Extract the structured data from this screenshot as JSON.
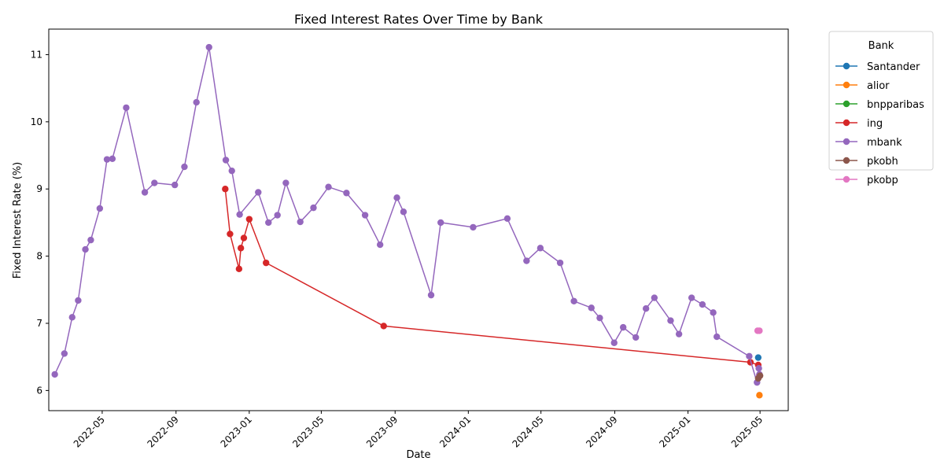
{
  "chart_data": {
    "type": "line",
    "title": "Fixed Interest Rates Over Time by Bank",
    "xlabel": "Date",
    "ylabel": "Fixed Interest Rate (%)",
    "xlim": [
      "2022-02-01",
      "2025-06-17"
    ],
    "ylim": [
      5.7,
      11.38
    ],
    "x_ticks": [
      "2022-05-01",
      "2022-09-01",
      "2023-01-01",
      "2023-05-01",
      "2023-09-01",
      "2024-01-01",
      "2024-05-01",
      "2024-09-01",
      "2025-01-01",
      "2025-05-01"
    ],
    "x_tick_labels": [
      "2022-05",
      "2022-09",
      "2023-01",
      "2023-05",
      "2023-09",
      "2024-01",
      "2024-05",
      "2024-09",
      "2025-01",
      "2025-05"
    ],
    "y_ticks": [
      6,
      7,
      8,
      9,
      10,
      11
    ],
    "y_tick_labels": [
      "6",
      "7",
      "8",
      "9",
      "10",
      "11"
    ],
    "grid": false,
    "legend": {
      "title": "Bank",
      "placement": "outside right"
    },
    "series": [
      {
        "name": "Santander",
        "color": "#1f77b4",
        "points": [
          [
            "2025-04-28",
            6.49
          ]
        ]
      },
      {
        "name": "alior",
        "color": "#ff7f0e",
        "points": [
          [
            "2025-04-30",
            5.93
          ]
        ]
      },
      {
        "name": "bnpparibas",
        "color": "#2ca02c",
        "points": []
      },
      {
        "name": "ing",
        "color": "#d62728",
        "points": [
          [
            "2022-11-22",
            9.0
          ],
          [
            "2022-11-30",
            8.33
          ],
          [
            "2022-12-15",
            7.81
          ],
          [
            "2022-12-18",
            8.12
          ],
          [
            "2022-12-23",
            8.27
          ],
          [
            "2023-01-01",
            8.55
          ],
          [
            "2023-01-29",
            7.9
          ],
          [
            "2023-08-13",
            6.96
          ],
          [
            "2025-04-15",
            6.42
          ],
          [
            "2025-04-28",
            6.38
          ],
          [
            "2025-04-30",
            6.23
          ]
        ]
      },
      {
        "name": "mbank",
        "color": "#9467bd",
        "points": [
          [
            "2022-02-11",
            6.24
          ],
          [
            "2022-02-27",
            6.55
          ],
          [
            "2022-03-12",
            7.09
          ],
          [
            "2022-03-22",
            7.34
          ],
          [
            "2022-04-03",
            8.1
          ],
          [
            "2022-04-12",
            8.24
          ],
          [
            "2022-04-27",
            8.71
          ],
          [
            "2022-05-09",
            9.44
          ],
          [
            "2022-05-18",
            9.45
          ],
          [
            "2022-06-10",
            10.21
          ],
          [
            "2022-07-11",
            8.95
          ],
          [
            "2022-07-27",
            9.09
          ],
          [
            "2022-08-30",
            9.06
          ],
          [
            "2022-09-15",
            9.33
          ],
          [
            "2022-10-05",
            10.29
          ],
          [
            "2022-10-26",
            11.11
          ],
          [
            "2022-11-23",
            9.43
          ],
          [
            "2022-12-03",
            9.27
          ],
          [
            "2022-12-16",
            8.62
          ],
          [
            "2023-01-16",
            8.95
          ],
          [
            "2023-02-02",
            8.5
          ],
          [
            "2023-02-17",
            8.61
          ],
          [
            "2023-03-03",
            9.09
          ],
          [
            "2023-03-27",
            8.51
          ],
          [
            "2023-04-18",
            8.72
          ],
          [
            "2023-05-13",
            9.03
          ],
          [
            "2023-06-12",
            8.94
          ],
          [
            "2023-07-13",
            8.61
          ],
          [
            "2023-08-07",
            8.17
          ],
          [
            "2023-09-04",
            8.87
          ],
          [
            "2023-09-15",
            8.66
          ],
          [
            "2023-10-31",
            7.42
          ],
          [
            "2023-11-16",
            8.5
          ],
          [
            "2024-01-09",
            8.43
          ],
          [
            "2024-03-06",
            8.56
          ],
          [
            "2024-04-07",
            7.93
          ],
          [
            "2024-04-30",
            8.12
          ],
          [
            "2024-06-02",
            7.9
          ],
          [
            "2024-06-25",
            7.33
          ],
          [
            "2024-07-24",
            7.23
          ],
          [
            "2024-08-07",
            7.08
          ],
          [
            "2024-08-31",
            6.71
          ],
          [
            "2024-09-15",
            6.94
          ],
          [
            "2024-10-06",
            6.79
          ],
          [
            "2024-10-23",
            7.22
          ],
          [
            "2024-11-06",
            7.38
          ],
          [
            "2024-12-03",
            7.04
          ],
          [
            "2024-12-17",
            6.84
          ],
          [
            "2025-01-07",
            7.38
          ],
          [
            "2025-01-25",
            7.28
          ],
          [
            "2025-02-12",
            7.16
          ],
          [
            "2025-02-18",
            6.8
          ],
          [
            "2025-04-13",
            6.51
          ],
          [
            "2025-04-26",
            6.12
          ],
          [
            "2025-04-29",
            6.33
          ],
          [
            "2025-04-30",
            6.24
          ]
        ]
      },
      {
        "name": "pkobh",
        "color": "#8c564b",
        "points": [
          [
            "2025-04-28",
            6.18
          ],
          [
            "2025-05-01",
            6.22
          ]
        ]
      },
      {
        "name": "pkobp",
        "color": "#e377c2",
        "points": [
          [
            "2025-04-27",
            6.89
          ],
          [
            "2025-04-30",
            6.89
          ]
        ]
      }
    ]
  }
}
